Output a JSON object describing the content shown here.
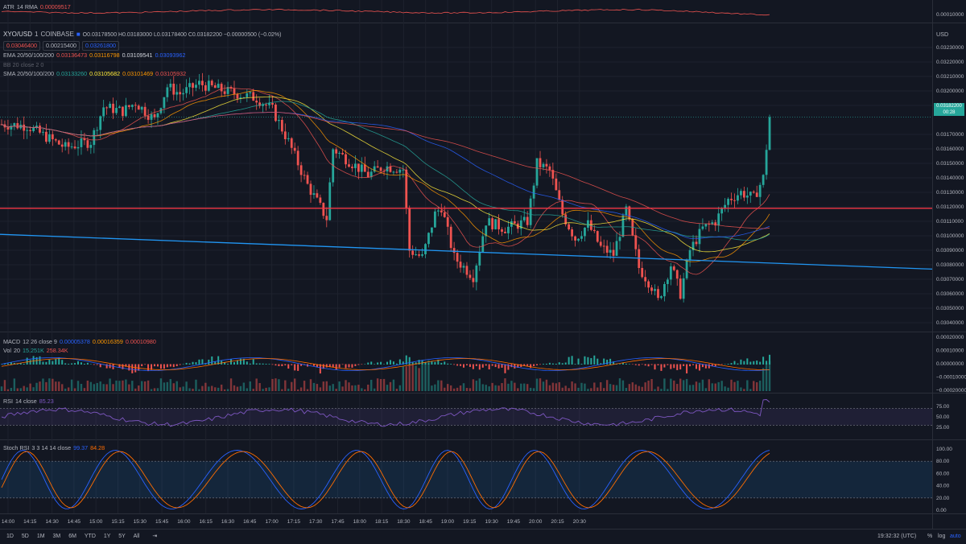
{
  "colors": {
    "bg": "#131722",
    "up": "#26a69a",
    "down": "#ef5350",
    "grid": "#1e222d",
    "red_line": "#f23645",
    "blue_line": "#2196f3",
    "rsi": "#7e57c2",
    "stoch_k": "#2962ff",
    "stoch_d": "#ff6d00"
  },
  "atr": {
    "label": "ATR",
    "params": "14 RMA",
    "value": "0.00009517",
    "axis": "0.00010000"
  },
  "symbol": {
    "pair": "XYO/USD",
    "interval": "1",
    "exchange": "COINBASE",
    "ohlc": "O0.03178500 H0.03183000 L0.03178400 C0.03182200 −0.00000500 (−0.02%)",
    "bid": "0.03046400",
    "spread": "0.00215400",
    "ask": "0.03261800",
    "currency": "USD"
  },
  "ema": {
    "label": "EMA 20/50/100/200",
    "v1": "0.03136473",
    "v2": "0.03116798",
    "v3": "0.03109541",
    "v4": "0.03093962"
  },
  "bb": {
    "label": "BB 20 close 2 0"
  },
  "sma": {
    "label": "SMA 20/50/100/200",
    "v1": "0.03133260",
    "v2": "0.03105682",
    "v3": "0.03101469",
    "v4": "0.03105932"
  },
  "macd": {
    "label": "MACD",
    "params": "12 26 close 9",
    "v1": "0.00005378",
    "v2": "0.00016359",
    "v3": "0.00010980"
  },
  "vol": {
    "label": "Vol",
    "params": "20",
    "v1": "15.251K",
    "v2": "258.34K"
  },
  "rsi": {
    "label": "RSI",
    "params": "14 close",
    "value": "85.23"
  },
  "stoch": {
    "label": "Stoch RSI",
    "params": "3 3 14 14 close",
    "k": "99.37",
    "d": "84.28"
  },
  "price_badge": {
    "price": "0.03182200",
    "countdown": "00:28"
  },
  "bottom": {
    "ranges": [
      "1D",
      "5D",
      "1M",
      "3M",
      "6M",
      "YTD",
      "1Y",
      "5Y",
      "All"
    ],
    "time": "19:32:32 (UTC)",
    "pct": "%",
    "log": "log",
    "auto": "auto"
  },
  "chart_data": {
    "type": "candlestick",
    "x_ticks": [
      "14:00",
      "14:15",
      "14:30",
      "14:45",
      "15:00",
      "15:15",
      "15:30",
      "15:45",
      "16:00",
      "16:15",
      "16:30",
      "16:45",
      "17:00",
      "17:15",
      "17:30",
      "17:45",
      "18:00",
      "18:15",
      "18:30",
      "18:45",
      "19:00",
      "19:15",
      "19:30",
      "19:45",
      "20:00",
      "20:15",
      "20:30"
    ],
    "price_ticks": [
      "0.03230000",
      "0.03220000",
      "0.03210000",
      "0.03200000",
      "0.03190000",
      "0.03170000",
      "0.03160000",
      "0.03150000",
      "0.03140000",
      "0.03130000",
      "0.03120000",
      "0.03110000",
      "0.03100000",
      "0.03090000",
      "0.03080000",
      "0.03070000",
      "0.03060000",
      "0.03050000",
      "0.03040000"
    ],
    "price_range": [
      0.03035,
      0.03235
    ],
    "macd_ticks": [
      "0.00020000",
      "0.00010000",
      "0.00000000",
      "−0.00010000",
      "−0.00020000"
    ],
    "rsi_ticks": [
      "75.00",
      "50.00",
      "25.00"
    ],
    "stoch_ticks": [
      "100.00",
      "80.00",
      "60.00",
      "40.00",
      "20.00",
      "0.00"
    ],
    "close_path": [
      [
        0,
        0.03177
      ],
      [
        8,
        0.03176
      ],
      [
        15,
        0.03167
      ],
      [
        20,
        0.03161
      ],
      [
        28,
        0.03165
      ],
      [
        32,
        0.03189
      ],
      [
        38,
        0.03186
      ],
      [
        42,
        0.03192
      ],
      [
        48,
        0.0318
      ],
      [
        52,
        0.03203
      ],
      [
        56,
        0.03198
      ],
      [
        62,
        0.03205
      ],
      [
        70,
        0.032
      ],
      [
        80,
        0.03195
      ],
      [
        85,
        0.03187
      ],
      [
        90,
        0.03165
      ],
      [
        96,
        0.03135
      ],
      [
        102,
        0.03112
      ],
      [
        104,
        0.0316
      ],
      [
        110,
        0.0315
      ],
      [
        115,
        0.03142
      ],
      [
        120,
        0.03148
      ],
      [
        126,
        0.03146
      ],
      [
        128,
        0.0309
      ],
      [
        132,
        0.03085
      ],
      [
        136,
        0.03115
      ],
      [
        138,
        0.0312
      ],
      [
        142,
        0.03085
      ],
      [
        148,
        0.03072
      ],
      [
        152,
        0.0311
      ],
      [
        158,
        0.03105
      ],
      [
        165,
        0.0311
      ],
      [
        168,
        0.0315
      ],
      [
        172,
        0.03145
      ],
      [
        176,
        0.03115
      ],
      [
        180,
        0.03098
      ],
      [
        184,
        0.03108
      ],
      [
        188,
        0.03092
      ],
      [
        192,
        0.03087
      ],
      [
        196,
        0.03118
      ],
      [
        200,
        0.03078
      ],
      [
        204,
        0.03065
      ],
      [
        206,
        0.03055
      ],
      [
        210,
        0.0308
      ],
      [
        213,
        0.0306
      ],
      [
        216,
        0.0309
      ],
      [
        220,
        0.03105
      ],
      [
        224,
        0.0311
      ],
      [
        228,
        0.03125
      ],
      [
        232,
        0.0313
      ],
      [
        236,
        0.03126
      ],
      [
        239,
        0.0314
      ],
      [
        241,
        0.03182
      ]
    ],
    "x_count": 242,
    "red_line": [
      0.03119,
      0.03119
    ],
    "blue_line": [
      0.03101,
      0.03077
    ]
  }
}
